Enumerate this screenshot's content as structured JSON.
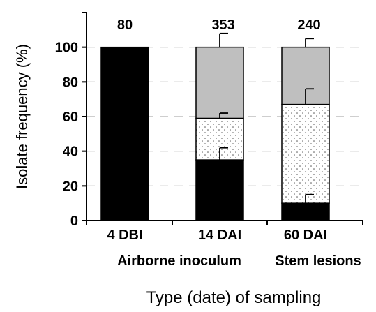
{
  "chart_data": {
    "type": "bar",
    "stacked": true,
    "title": "",
    "xlabel": "Type (date) of sampling",
    "ylabel": "Isolate frequency (%)",
    "ylim": [
      0,
      100
    ],
    "yticks": [
      0,
      20,
      40,
      60,
      80,
      100
    ],
    "grid": "dashed horizontal",
    "categories": [
      "4 DBI",
      "14 DAI",
      "60 DAI"
    ],
    "group_labels": [
      "Airborne inoculum",
      "Stem lesions"
    ],
    "sample_sizes": [
      "80",
      "353",
      "240"
    ],
    "series": [
      {
        "fill": "#000000",
        "pattern": "solid",
        "values": [
          100,
          35,
          10
        ],
        "error_top": [
          null,
          42,
          15
        ]
      },
      {
        "fill": "#ffffff",
        "pattern": "dotted",
        "values": [
          0,
          24,
          57
        ],
        "error_top": [
          null,
          62,
          76
        ]
      },
      {
        "fill": "#bfbfbf",
        "pattern": "solid",
        "values": [
          0,
          41,
          33
        ],
        "error_top": [
          null,
          108,
          105
        ]
      }
    ]
  }
}
